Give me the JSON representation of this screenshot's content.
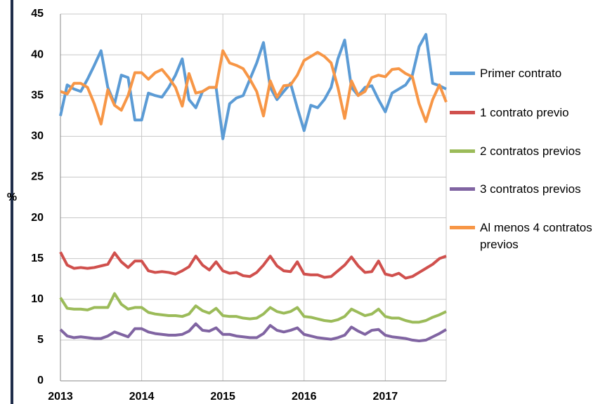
{
  "chart_data": {
    "type": "line",
    "ylabel": "%",
    "categories": [
      "2013",
      null,
      null,
      null,
      null,
      null,
      null,
      null,
      null,
      null,
      null,
      null,
      "2014",
      null,
      null,
      null,
      null,
      null,
      null,
      null,
      null,
      null,
      null,
      null,
      "2015",
      null,
      null,
      null,
      null,
      null,
      null,
      null,
      null,
      null,
      null,
      null,
      "2016",
      null,
      null,
      null,
      null,
      null,
      null,
      null,
      null,
      null,
      null,
      null,
      "2017",
      null,
      null,
      null,
      null,
      null,
      null,
      null,
      null,
      null
    ],
    "series": [
      {
        "name": "Primer contrato",
        "color": "#5b9bd5",
        "values": [
          32.5,
          36.3,
          35.8,
          35.5,
          37.0,
          38.7,
          40.5,
          36.0,
          34.0,
          37.5,
          37.2,
          32.0,
          32.0,
          35.3,
          35.0,
          34.8,
          36.0,
          37.5,
          39.5,
          34.5,
          33.5,
          35.5,
          36.0,
          36.0,
          29.7,
          34.0,
          34.7,
          35.0,
          37.0,
          39.0,
          41.5,
          36.0,
          34.5,
          35.5,
          36.5,
          33.5,
          30.7,
          33.8,
          33.5,
          34.5,
          36.0,
          39.5,
          41.8,
          36.0,
          35.0,
          36.0,
          36.2,
          34.5,
          33.0,
          35.3,
          35.8,
          36.3,
          37.5,
          41.0,
          42.5,
          36.5,
          36.2,
          35.8
        ]
      },
      {
        "name": "1 contrato previo",
        "color": "#d0504d",
        "values": [
          15.8,
          14.2,
          13.8,
          13.9,
          13.8,
          13.9,
          14.1,
          14.3,
          15.7,
          14.6,
          13.9,
          14.7,
          14.7,
          13.5,
          13.3,
          13.4,
          13.3,
          13.1,
          13.5,
          14.0,
          15.3,
          14.2,
          13.6,
          14.6,
          13.5,
          13.2,
          13.3,
          12.9,
          12.8,
          13.3,
          14.2,
          15.3,
          14.1,
          13.5,
          13.4,
          14.6,
          13.1,
          13.0,
          13.0,
          12.7,
          12.8,
          13.5,
          14.2,
          15.2,
          14.1,
          13.3,
          13.4,
          14.7,
          13.1,
          12.9,
          13.2,
          12.6,
          12.8,
          13.3,
          13.8,
          14.3,
          15.0,
          15.3
        ]
      },
      {
        "name": "2 contratos previos",
        "color": "#9bbb59",
        "values": [
          10.2,
          8.9,
          8.8,
          8.8,
          8.7,
          9.0,
          9.0,
          9.0,
          10.7,
          9.4,
          8.8,
          9.0,
          9.0,
          8.4,
          8.2,
          8.1,
          8.0,
          8.0,
          7.9,
          8.2,
          9.2,
          8.6,
          8.3,
          8.9,
          8.0,
          7.9,
          7.9,
          7.7,
          7.6,
          7.7,
          8.2,
          9.0,
          8.5,
          8.3,
          8.5,
          9.0,
          7.9,
          7.8,
          7.6,
          7.4,
          7.3,
          7.5,
          7.9,
          8.8,
          8.4,
          8.0,
          8.2,
          8.8,
          7.9,
          7.7,
          7.7,
          7.4,
          7.2,
          7.2,
          7.4,
          7.8,
          8.1,
          8.5
        ]
      },
      {
        "name": "3 contratos previos",
        "color": "#8064a2",
        "values": [
          6.3,
          5.5,
          5.3,
          5.4,
          5.3,
          5.2,
          5.2,
          5.5,
          6.0,
          5.7,
          5.4,
          6.4,
          6.4,
          6.0,
          5.8,
          5.7,
          5.6,
          5.6,
          5.7,
          6.1,
          7.0,
          6.2,
          6.1,
          6.5,
          5.7,
          5.7,
          5.5,
          5.4,
          5.3,
          5.3,
          5.8,
          6.8,
          6.2,
          6.0,
          6.2,
          6.5,
          5.7,
          5.5,
          5.3,
          5.2,
          5.1,
          5.3,
          5.6,
          6.6,
          6.1,
          5.7,
          6.2,
          6.3,
          5.6,
          5.4,
          5.3,
          5.2,
          5.0,
          4.9,
          5.0,
          5.4,
          5.8,
          6.3
        ]
      },
      {
        "name": "Al menos 4 contratos previos",
        "color": "#f79646",
        "values": [
          35.5,
          35.2,
          36.5,
          36.5,
          36.0,
          34.0,
          31.5,
          35.7,
          33.8,
          33.2,
          35.0,
          37.8,
          37.8,
          37.0,
          37.8,
          38.2,
          37.2,
          36.0,
          33.7,
          37.7,
          35.3,
          35.5,
          36.0,
          36.0,
          40.5,
          39.0,
          38.7,
          38.3,
          37.0,
          35.5,
          32.5,
          36.8,
          34.8,
          36.2,
          36.3,
          37.5,
          39.3,
          39.8,
          40.3,
          39.8,
          39.0,
          36.0,
          32.2,
          36.8,
          35.0,
          35.5,
          37.2,
          37.5,
          37.3,
          38.2,
          38.3,
          37.7,
          37.3,
          34.0,
          31.8,
          34.5,
          36.3,
          34.2
        ]
      }
    ],
    "ylim": [
      0,
      45
    ],
    "yticks": [
      0,
      5,
      10,
      15,
      20,
      25,
      30,
      35,
      40,
      45
    ],
    "grid": true
  }
}
